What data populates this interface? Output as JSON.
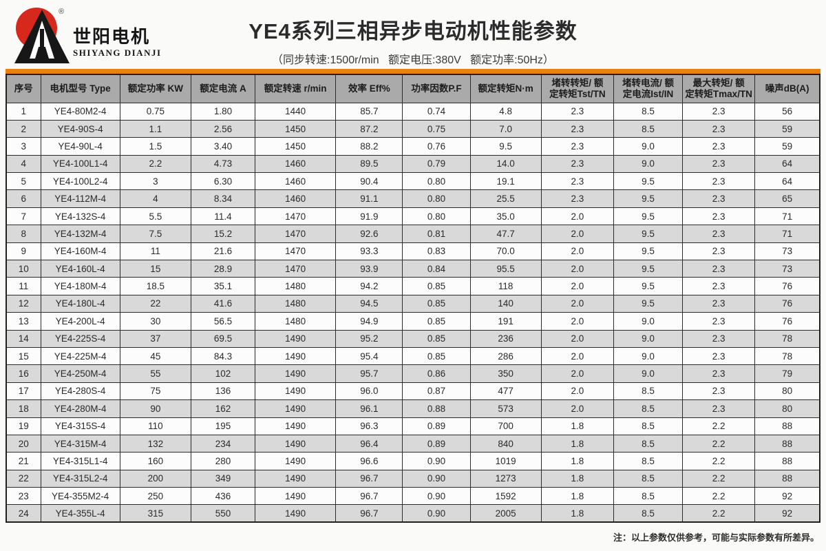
{
  "logo": {
    "brand_cn": "世阳电机",
    "brand_en": "SHIYANG DIANJI",
    "registered_mark": "®",
    "colors": {
      "red": "#d7281e",
      "black": "#171717"
    }
  },
  "header": {
    "title": "YE4系列三相异步电动机性能参数",
    "subtitle": "（同步转速:1500r/min   额定电压:380V   额定功率:50Hz）"
  },
  "table": {
    "accent_color": "#e8820e",
    "header_bg": "#aaaaaa",
    "alt_row_bg": "#d9d9d9",
    "columns": [
      "序号",
      "电机型号 Type",
      "额定功率 KW",
      "额定电流 A",
      "额定转速 r/min",
      "效率 Eff%",
      "功率因数P.F",
      "额定转矩N·m",
      "堵转转矩/ 额\n定转矩Tst/TN",
      "堵转电流/ 额\n定电流Ist/IN",
      "最大转矩/ 额\n定转矩Tmax/TN",
      "噪声dB(A)"
    ],
    "rows": [
      [
        "1",
        "YE4-80M2-4",
        "0.75",
        "1.80",
        "1440",
        "85.7",
        "0.74",
        "4.8",
        "2.3",
        "8.5",
        "2.3",
        "56"
      ],
      [
        "2",
        "YE4-90S-4",
        "1.1",
        "2.56",
        "1450",
        "87.2",
        "0.75",
        "7.0",
        "2.3",
        "8.5",
        "2.3",
        "59"
      ],
      [
        "3",
        "YE4-90L-4",
        "1.5",
        "3.40",
        "1450",
        "88.2",
        "0.76",
        "9.5",
        "2.3",
        "9.0",
        "2.3",
        "59"
      ],
      [
        "4",
        "YE4-100L1-4",
        "2.2",
        "4.73",
        "1460",
        "89.5",
        "0.79",
        "14.0",
        "2.3",
        "9.0",
        "2.3",
        "64"
      ],
      [
        "5",
        "YE4-100L2-4",
        "3",
        "6.30",
        "1460",
        "90.4",
        "0.80",
        "19.1",
        "2.3",
        "9.5",
        "2.3",
        "64"
      ],
      [
        "6",
        "YE4-112M-4",
        "4",
        "8.34",
        "1460",
        "91.1",
        "0.80",
        "25.5",
        "2.3",
        "9.5",
        "2.3",
        "65"
      ],
      [
        "7",
        "YE4-132S-4",
        "5.5",
        "11.4",
        "1470",
        "91.9",
        "0.80",
        "35.0",
        "2.0",
        "9.5",
        "2.3",
        "71"
      ],
      [
        "8",
        "YE4-132M-4",
        "7.5",
        "15.2",
        "1470",
        "92.6",
        "0.81",
        "47.7",
        "2.0",
        "9.5",
        "2.3",
        "71"
      ],
      [
        "9",
        "YE4-160M-4",
        "11",
        "21.6",
        "1470",
        "93.3",
        "0.83",
        "70.0",
        "2.0",
        "9.5",
        "2.3",
        "73"
      ],
      [
        "10",
        "YE4-160L-4",
        "15",
        "28.9",
        "1470",
        "93.9",
        "0.84",
        "95.5",
        "2.0",
        "9.5",
        "2.3",
        "73"
      ],
      [
        "11",
        "YE4-180M-4",
        "18.5",
        "35.1",
        "1480",
        "94.2",
        "0.85",
        "118",
        "2.0",
        "9.5",
        "2.3",
        "76"
      ],
      [
        "12",
        "YE4-180L-4",
        "22",
        "41.6",
        "1480",
        "94.5",
        "0.85",
        "140",
        "2.0",
        "9.5",
        "2.3",
        "76"
      ],
      [
        "13",
        "YE4-200L-4",
        "30",
        "56.5",
        "1480",
        "94.9",
        "0.85",
        "191",
        "2.0",
        "9.0",
        "2.3",
        "76"
      ],
      [
        "14",
        "YE4-225S-4",
        "37",
        "69.5",
        "1490",
        "95.2",
        "0.85",
        "236",
        "2.0",
        "9.0",
        "2.3",
        "78"
      ],
      [
        "15",
        "YE4-225M-4",
        "45",
        "84.3",
        "1490",
        "95.4",
        "0.85",
        "286",
        "2.0",
        "9.0",
        "2.3",
        "78"
      ],
      [
        "16",
        "YE4-250M-4",
        "55",
        "102",
        "1490",
        "95.7",
        "0.86",
        "350",
        "2.0",
        "9.0",
        "2.3",
        "79"
      ],
      [
        "17",
        "YE4-280S-4",
        "75",
        "136",
        "1490",
        "96.0",
        "0.87",
        "477",
        "2.0",
        "8.5",
        "2.3",
        "80"
      ],
      [
        "18",
        "YE4-280M-4",
        "90",
        "162",
        "1490",
        "96.1",
        "0.88",
        "573",
        "2.0",
        "8.5",
        "2.3",
        "80"
      ],
      [
        "19",
        "YE4-315S-4",
        "110",
        "195",
        "1490",
        "96.3",
        "0.89",
        "700",
        "1.8",
        "8.5",
        "2.2",
        "88"
      ],
      [
        "20",
        "YE4-315M-4",
        "132",
        "234",
        "1490",
        "96.4",
        "0.89",
        "840",
        "1.8",
        "8.5",
        "2.2",
        "88"
      ],
      [
        "21",
        "YE4-315L1-4",
        "160",
        "280",
        "1490",
        "96.6",
        "0.90",
        "1019",
        "1.8",
        "8.5",
        "2.2",
        "88"
      ],
      [
        "22",
        "YE4-315L2-4",
        "200",
        "349",
        "1490",
        "96.7",
        "0.90",
        "1273",
        "1.8",
        "8.5",
        "2.2",
        "88"
      ],
      [
        "23",
        "YE4-355M2-4",
        "250",
        "436",
        "1490",
        "96.7",
        "0.90",
        "1592",
        "1.8",
        "8.5",
        "2.2",
        "92"
      ],
      [
        "24",
        "YE4-355L-4",
        "315",
        "550",
        "1490",
        "96.7",
        "0.90",
        "2005",
        "1.8",
        "8.5",
        "2.2",
        "92"
      ]
    ]
  },
  "footer": {
    "note": "注：以上参数仅供参考，可能与实际参数有所差异。"
  }
}
